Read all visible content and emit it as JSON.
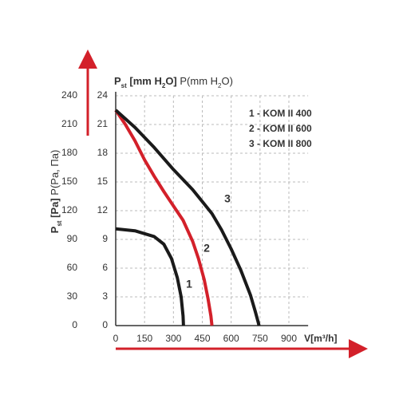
{
  "chart_data": {
    "type": "line",
    "y_label": [
      {
        "text": "P"
      },
      {
        "text": "st",
        "sub": true
      },
      {
        "text": " [Pa] "
      },
      {
        "text": "P(Pa, Па)",
        "light": true
      }
    ],
    "y2_label": [
      {
        "text": "P"
      },
      {
        "text": "st",
        "sub": true
      },
      {
        "text": " [mm H"
      },
      {
        "text": "2",
        "sub": true
      },
      {
        "text": "O] "
      },
      {
        "text": "P(mm H",
        "light": true
      },
      {
        "text": "2",
        "sub": true,
        "light": true
      },
      {
        "text": "O)",
        "light": true
      }
    ],
    "x_label": "V[m³/h]",
    "xlim": [
      0,
      1000
    ],
    "xticks": [
      0,
      150,
      300,
      450,
      600,
      750,
      900
    ],
    "ylim": [
      0,
      24
    ],
    "yticks": [
      0,
      3,
      6,
      9,
      12,
      15,
      18,
      21,
      24
    ],
    "y2lim": [
      0,
      240
    ],
    "y2ticks": [
      0,
      30,
      60,
      90,
      120,
      150,
      180,
      210,
      240
    ],
    "grid": true,
    "series": [
      {
        "name": "1 - KOM II 400",
        "label": "1",
        "color": "#1a1a1a",
        "x": [
          0,
          100,
          200,
          250,
          290,
          320,
          340,
          350,
          352
        ],
        "values": [
          10.1,
          9.9,
          9.3,
          8.5,
          7,
          5,
          3,
          1,
          0
        ]
      },
      {
        "name": "2 - KOM II 600",
        "label": "2",
        "color": "#d3202a",
        "x": [
          0,
          50,
          100,
          150,
          200,
          250,
          300,
          350,
          400,
          430,
          460,
          480,
          495,
          500
        ],
        "values": [
          22.5,
          21,
          19.3,
          17.3,
          15.6,
          14,
          12.5,
          11,
          8.8,
          7,
          4.8,
          2.8,
          1,
          0
        ]
      },
      {
        "name": "3 - KOM II 800",
        "label": "3",
        "color": "#1a1a1a",
        "x": [
          0,
          100,
          200,
          300,
          400,
          500,
          550,
          600,
          650,
          700,
          725,
          740,
          745
        ],
        "values": [
          22.5,
          20.7,
          18.6,
          16.3,
          14.2,
          11.7,
          10,
          8,
          5.8,
          3.2,
          1.5,
          0.4,
          0
        ]
      }
    ]
  }
}
